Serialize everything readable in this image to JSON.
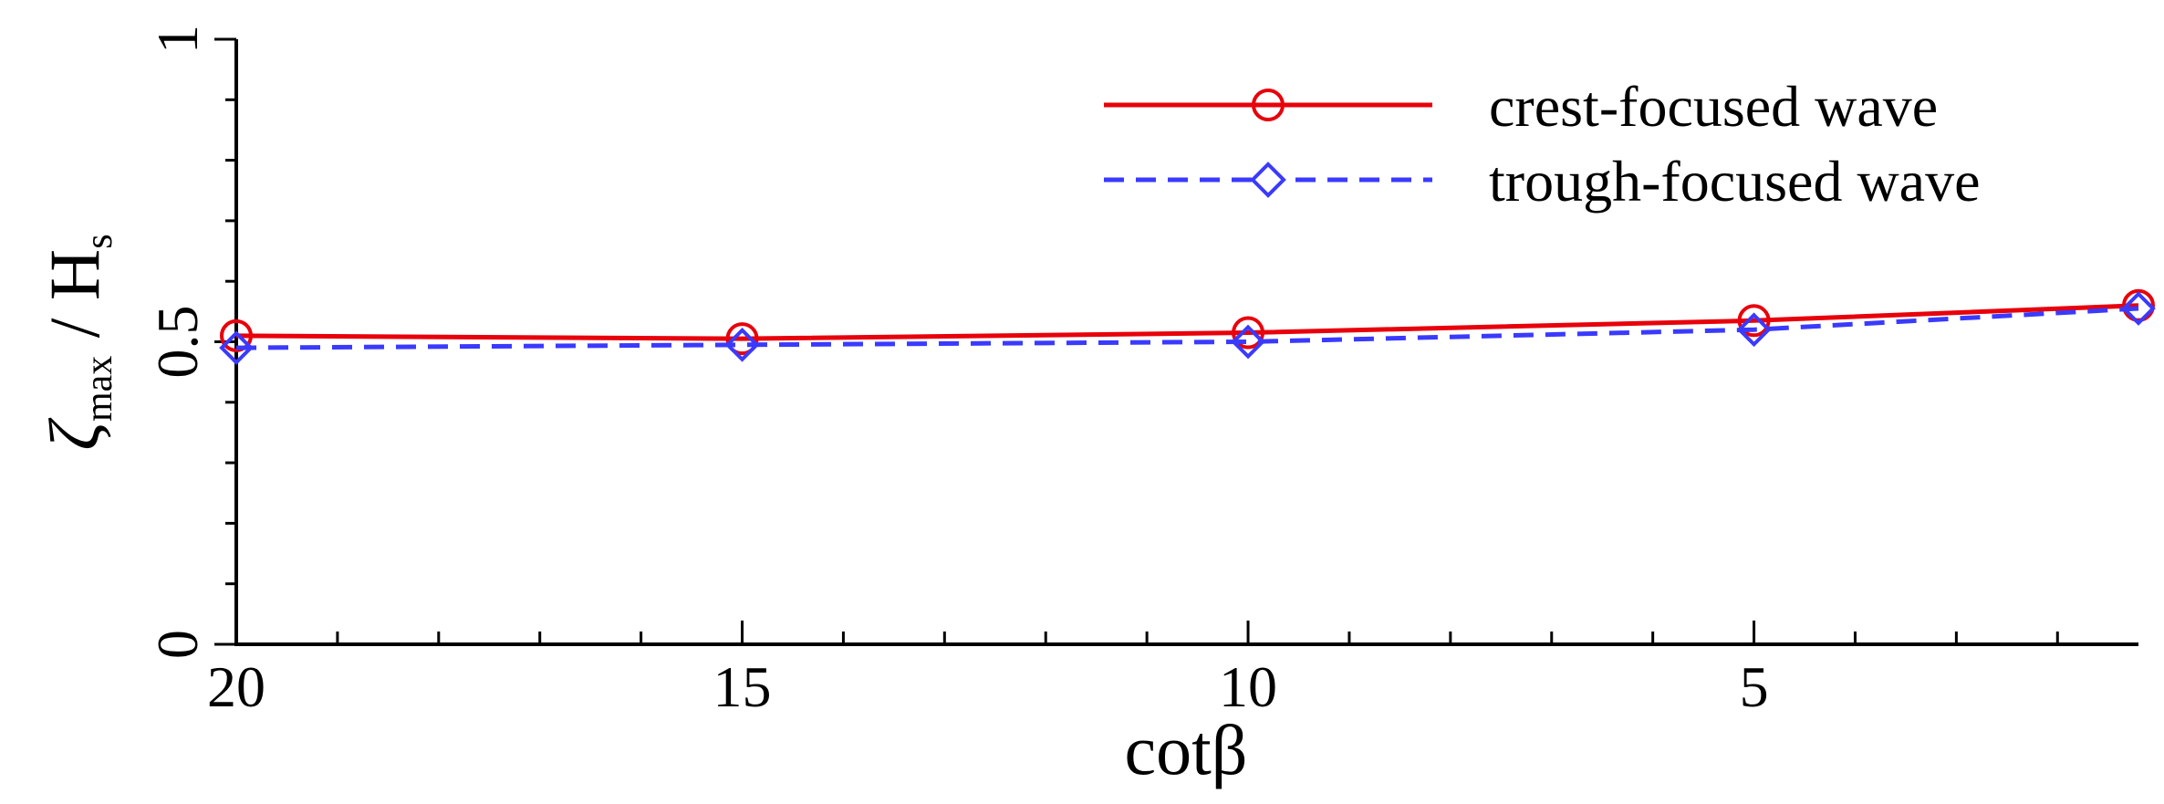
{
  "chart_data": {
    "type": "line",
    "xlabel": "cotβ",
    "ylabel": {
      "symbol": "ζ",
      "subscript": "max",
      "divider": " / ",
      "denominator": "H",
      "denominator_subscript": "s"
    },
    "xlim": [
      20,
      1.2
    ],
    "x_reversed": true,
    "ylim": [
      0,
      1
    ],
    "xticks": [
      20,
      15,
      10,
      5
    ],
    "xtick_labels": [
      "20",
      "15",
      "10",
      "5"
    ],
    "x_minor_step": 1,
    "yticks": [
      0,
      0.5,
      1
    ],
    "ytick_labels": [
      "0",
      "0.5",
      "1"
    ],
    "y_minor_step": 0.1,
    "grid": false,
    "legend_position": "top-right",
    "series": [
      {
        "name": "crest-focused wave",
        "color": "#e8000b",
        "line_style": "solid",
        "marker": "circle",
        "x": [
          20,
          15,
          10,
          5,
          1.2
        ],
        "y": [
          0.51,
          0.505,
          0.515,
          0.535,
          0.56
        ]
      },
      {
        "name": "trough-focused wave",
        "color": "#3a3aff",
        "line_style": "dashed",
        "marker": "diamond",
        "x": [
          20,
          15,
          10,
          5,
          1.2
        ],
        "y": [
          0.49,
          0.495,
          0.5,
          0.52,
          0.555
        ]
      }
    ]
  }
}
